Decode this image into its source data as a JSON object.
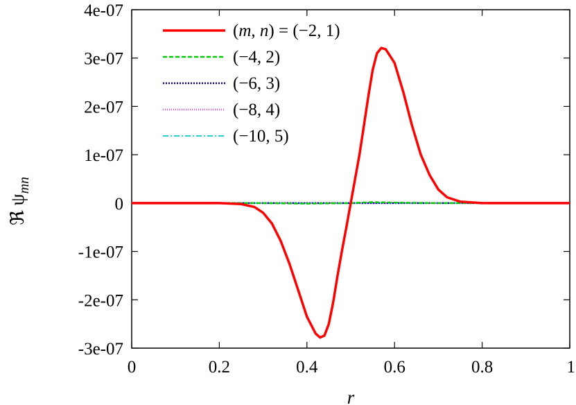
{
  "chart_data": {
    "type": "line",
    "xlabel": "r",
    "ylabel": "ℜ ψ",
    "ylabel_sub": "mn",
    "xlim": [
      0,
      1
    ],
    "ylim": [
      -3e-07,
      4e-07
    ],
    "xticks": [
      0,
      0.2,
      0.4,
      0.6,
      0.8,
      1
    ],
    "xtick_labels": [
      "0",
      "0.2",
      "0.4",
      "0.6",
      "0.8",
      "1"
    ],
    "yticks": [
      -3e-07,
      -2e-07,
      -1e-07,
      0,
      1e-07,
      2e-07,
      3e-07,
      4e-07
    ],
    "ytick_labels": [
      "-3e-07",
      "-2e-07",
      "-1e-07",
      "0",
      "1e-07",
      "2e-07",
      "3e-07",
      "4e-07"
    ],
    "grid": false,
    "legend_position": "top-left",
    "series": [
      {
        "name": "(m, n) = (−2, 1)",
        "color": "#ff0000",
        "dash": "solid",
        "x": [
          0,
          0.2,
          0.25,
          0.28,
          0.3,
          0.32,
          0.34,
          0.36,
          0.38,
          0.4,
          0.42,
          0.43,
          0.44,
          0.45,
          0.46,
          0.47,
          0.48,
          0.49,
          0.5,
          0.51,
          0.52,
          0.53,
          0.54,
          0.55,
          0.56,
          0.57,
          0.58,
          0.6,
          0.62,
          0.64,
          0.66,
          0.68,
          0.7,
          0.72,
          0.75,
          0.8,
          1
        ],
        "y": [
          0,
          0,
          -2e-09,
          -8e-09,
          -2e-08,
          -4.2e-08,
          -7.8e-08,
          -1.25e-07,
          -1.8e-07,
          -2.35e-07,
          -2.7e-07,
          -2.78e-07,
          -2.74e-07,
          -2.5e-07,
          -2.05e-07,
          -1.5e-07,
          -9.8e-08,
          -5e-08,
          0,
          5e-08,
          1e-07,
          1.6e-07,
          2.2e-07,
          2.75e-07,
          3.1e-07,
          3.21e-07,
          3.18e-07,
          2.9e-07,
          2.3e-07,
          1.6e-07,
          1e-07,
          5.8e-08,
          2.8e-08,
          1.2e-08,
          3e-09,
          0,
          0
        ]
      },
      {
        "name": "(−4, 2)",
        "color": "#00cc00",
        "dash": "6,3",
        "x": [
          0,
          0.3,
          0.4,
          0.45,
          0.5,
          0.55,
          0.6,
          0.7,
          1
        ],
        "y": [
          0,
          0,
          -1e-09,
          -5e-10,
          0,
          2e-09,
          1e-09,
          0,
          0
        ]
      },
      {
        "name": "(−6, 3)",
        "color": "#0000cc",
        "dash": "2,2",
        "x": [
          0,
          1
        ],
        "y": [
          0,
          0
        ]
      },
      {
        "name": "(−8, 4)",
        "color": "#ff44ff",
        "dash": "1,2",
        "x": [
          0,
          1
        ],
        "y": [
          0,
          0
        ]
      },
      {
        "name": "(−10, 5)",
        "color": "#00cccc",
        "dash": "8,3,2,3",
        "x": [
          0,
          1
        ],
        "y": [
          0,
          0
        ]
      }
    ]
  }
}
